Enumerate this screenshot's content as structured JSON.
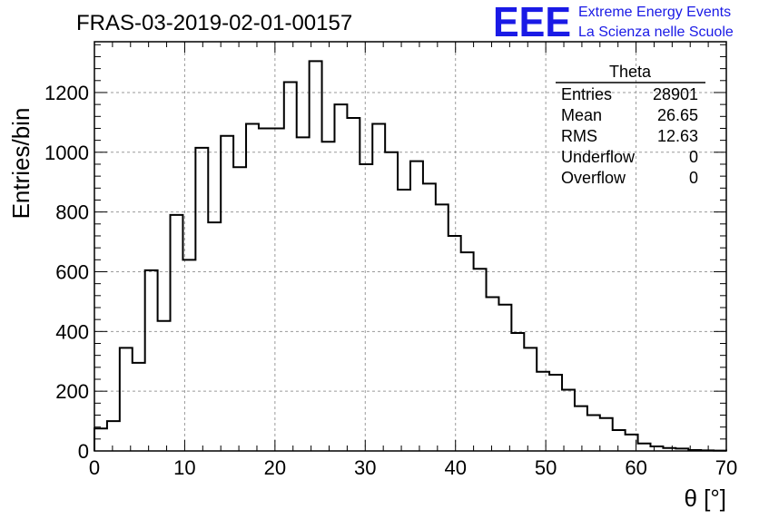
{
  "chart_data": {
    "type": "bar",
    "title": "FRAS-03-2019-02-01-00157",
    "xlabel": "θ [°]",
    "ylabel": "Entries/bin",
    "xlim": [
      0,
      70
    ],
    "ylim": [
      0,
      1370
    ],
    "xticks": [
      0,
      10,
      20,
      30,
      40,
      50,
      60,
      70
    ],
    "yticks": [
      0,
      200,
      400,
      600,
      800,
      1000,
      1200
    ],
    "grid": true,
    "bin_width": 1.4,
    "bin_edges_start": 0,
    "values": [
      75,
      100,
      345,
      295,
      605,
      435,
      790,
      640,
      1015,
      765,
      1055,
      950,
      1095,
      1080,
      1080,
      1235,
      1050,
      1305,
      1035,
      1160,
      1115,
      960,
      1095,
      1000,
      875,
      970,
      895,
      825,
      720,
      665,
      610,
      515,
      490,
      395,
      345,
      265,
      255,
      205,
      150,
      120,
      110,
      70,
      55,
      25,
      15,
      10,
      8,
      3,
      2,
      1
    ],
    "stats": {
      "name": "Theta",
      "rows": [
        {
          "label": "Entries",
          "value": "28901"
        },
        {
          "label": "Mean",
          "value": "26.65"
        },
        {
          "label": "RMS",
          "value": "12.63"
        },
        {
          "label": "Underflow",
          "value": "0"
        },
        {
          "label": "Overflow",
          "value": "0"
        }
      ]
    }
  },
  "logo": {
    "mark": "EEE",
    "line1": "Extreme Energy Events",
    "line2": "La Scienza nelle Scuole",
    "color": "#1a1ae6"
  }
}
